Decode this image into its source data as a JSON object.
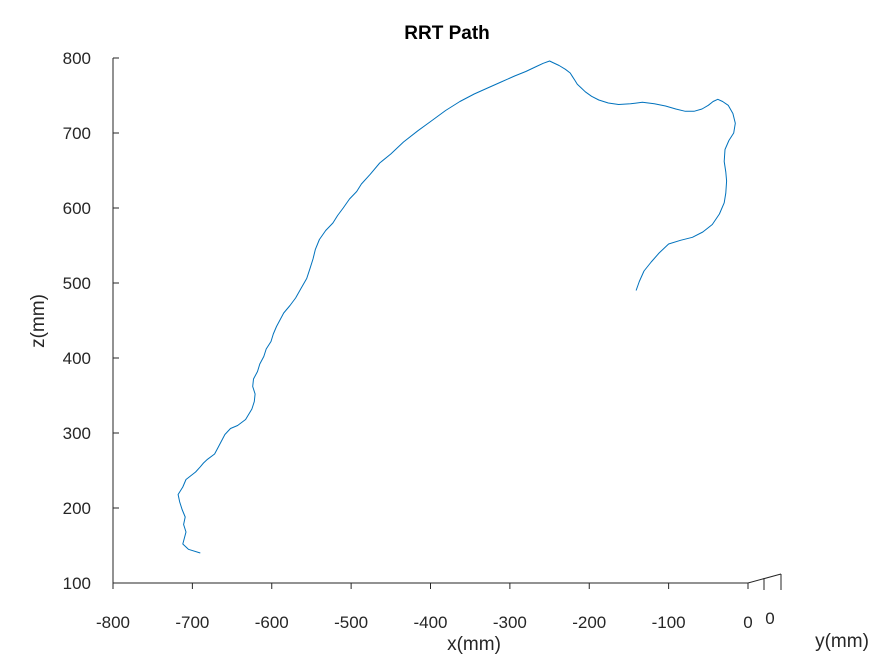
{
  "chart_data": {
    "type": "line",
    "title": "RRT Path",
    "xlabel": "x(mm)",
    "ylabel": "y(mm)",
    "zlabel": "z(mm)",
    "x_ticks": [
      "-800",
      "-700",
      "-600",
      "-500",
      "-400",
      "-300",
      "-200",
      "-100",
      "0"
    ],
    "y_ticks": [
      "0"
    ],
    "z_ticks": [
      "100",
      "200",
      "300",
      "400",
      "500",
      "600",
      "700",
      "800"
    ],
    "xlim": [
      -800,
      0
    ],
    "zlim": [
      100,
      800
    ],
    "grid": false,
    "series": [
      {
        "color": "#0072bd",
        "x": [
          -690,
          -705,
          -712,
          -710,
          -708,
          -711,
          -709,
          -713,
          -716,
          -718,
          -712,
          -708,
          -696,
          -690,
          -686,
          -681,
          -672,
          -668,
          -659,
          -652,
          -643,
          -633,
          -625,
          -622,
          -621,
          -624,
          -623,
          -618,
          -615,
          -610,
          -607,
          -601,
          -598,
          -594,
          -585,
          -577,
          -570,
          -563,
          -556,
          -552,
          -548,
          -545,
          -540,
          -532,
          -523,
          -517,
          -510,
          -502,
          -493,
          -487,
          -476,
          -464,
          -450,
          -434,
          -416,
          -399,
          -381,
          -363,
          -345,
          -328,
          -311,
          -294,
          -280,
          -268,
          -258,
          -250,
          -246,
          -238,
          -230,
          -224,
          -221,
          -218,
          -215,
          -210,
          -205,
          -197,
          -188,
          -176,
          -163,
          -148,
          -133,
          -118,
          -104,
          -91,
          -79,
          -68,
          -58,
          -50,
          -44,
          -38,
          -32,
          -25,
          -19,
          -16,
          -18,
          -24,
          -29,
          -30,
          -28,
          -27,
          -28,
          -30,
          -36,
          -45,
          -57,
          -70,
          -85,
          -100,
          -112,
          -122,
          -131,
          -137,
          -141
        ],
        "z": [
          140,
          145,
          152,
          160,
          168,
          178,
          188,
          198,
          208,
          218,
          228,
          238,
          248,
          255,
          260,
          265,
          272,
          280,
          298,
          306,
          310,
          318,
          332,
          342,
          352,
          362,
          372,
          382,
          392,
          402,
          412,
          422,
          432,
          442,
          460,
          470,
          480,
          493,
          506,
          519,
          532,
          545,
          558,
          570,
          580,
          590,
          600,
          612,
          622,
          632,
          645,
          660,
          672,
          688,
          703,
          716,
          730,
          742,
          752,
          760,
          768,
          776,
          782,
          788,
          793,
          796,
          794,
          790,
          785,
          780,
          775,
          770,
          765,
          760,
          755,
          749,
          744,
          740,
          738,
          739,
          741,
          739,
          736,
          732,
          729,
          729,
          732,
          737,
          742,
          745,
          742,
          737,
          726,
          713,
          700,
          690,
          678,
          662,
          648,
          636,
          620,
          607,
          592,
          578,
          568,
          561,
          557,
          552,
          540,
          528,
          516,
          502,
          490
        ]
      }
    ]
  }
}
